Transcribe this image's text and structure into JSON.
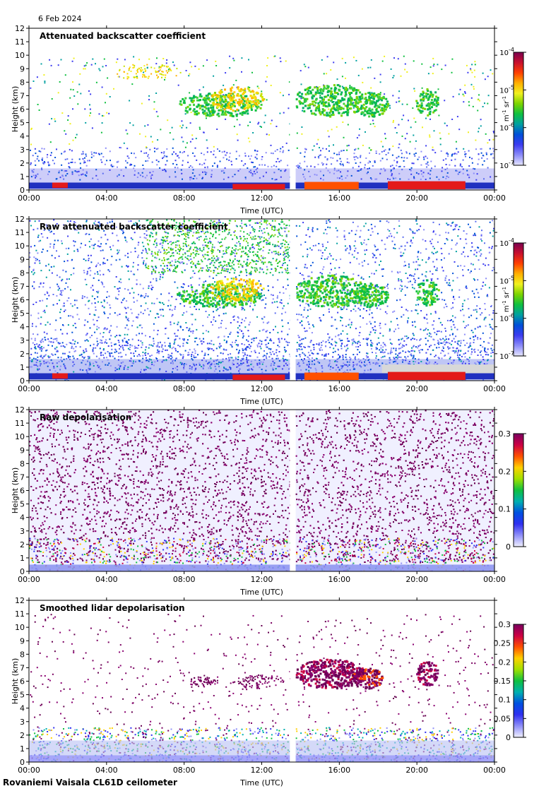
{
  "date": "6 Feb 2024",
  "footer": "Rovaniemi Vaisala CL61D ceilometer",
  "colors": {
    "gap": "#ffffff",
    "cloud_mid": "#37d04a",
    "cloud_high": "#f0d020",
    "low_red": "#e31a1a",
    "noise_blue": "#5a6cf0"
  },
  "chart_data": [
    {
      "type": "heatmap",
      "title": "Attenuated backscatter coefficient",
      "xlabel": "Time (UTC)",
      "ylabel": "Height (km)",
      "x_ticks": [
        "00:00",
        "04:00",
        "08:00",
        "12:00",
        "16:00",
        "20:00",
        "00:00"
      ],
      "y_ticks": [
        "0",
        "1",
        "2",
        "3",
        "4",
        "5",
        "6",
        "7",
        "8",
        "9",
        "10",
        "11",
        "12"
      ],
      "ylim": [
        0,
        12
      ],
      "colorbar": {
        "scale": "log",
        "ticks": [
          {
            "base": "10",
            "exp": "-4"
          },
          {
            "base": "10",
            "exp": "-5"
          },
          {
            "base": "10",
            "exp": "-6"
          },
          {
            "base": "10",
            "exp": "-7"
          }
        ],
        "unit_m": "m",
        "unit_m_exp": "-1",
        "unit_sr": "sr",
        "unit_sr_exp": "-1"
      }
    },
    {
      "type": "heatmap",
      "title": "Raw attenuated backscatter coefficient",
      "xlabel": "Time (UTC)",
      "ylabel": "Height (km)",
      "x_ticks": [
        "00:00",
        "04:00",
        "08:00",
        "12:00",
        "16:00",
        "20:00",
        "00:00"
      ],
      "y_ticks": [
        "0",
        "1",
        "2",
        "3",
        "4",
        "5",
        "6",
        "7",
        "8",
        "9",
        "10",
        "11",
        "12"
      ],
      "ylim": [
        0,
        12
      ],
      "colorbar": {
        "scale": "log",
        "ticks": [
          {
            "base": "10",
            "exp": "-4"
          },
          {
            "base": "10",
            "exp": "-5"
          },
          {
            "base": "10",
            "exp": "-6"
          },
          {
            "base": "10",
            "exp": "-7"
          }
        ],
        "unit_m": "m",
        "unit_m_exp": "-1",
        "unit_sr": "sr",
        "unit_sr_exp": "-1"
      }
    },
    {
      "type": "heatmap",
      "title": "Raw depolarisation",
      "xlabel": "Time (UTC)",
      "ylabel": "Height (km)",
      "x_ticks": [
        "00:00",
        "04:00",
        "08:00",
        "12:00",
        "16:00",
        "20:00",
        "00:00"
      ],
      "y_ticks": [
        "0",
        "1",
        "2",
        "3",
        "4",
        "5",
        "6",
        "7",
        "8",
        "9",
        "10",
        "11",
        "12"
      ],
      "ylim": [
        0,
        12
      ],
      "colorbar": {
        "scale": "linear",
        "ticks": [
          {
            "label": "0.3"
          },
          {
            "label": "0.2"
          },
          {
            "label": "0.1"
          },
          {
            "label": "0"
          }
        ]
      }
    },
    {
      "type": "heatmap",
      "title": "Smoothed lidar depolarisation",
      "xlabel": "Time (UTC)",
      "ylabel": "Height (km)",
      "x_ticks": [
        "00:00",
        "04:00",
        "08:00",
        "12:00",
        "16:00",
        "20:00",
        "00:00"
      ],
      "y_ticks": [
        "0",
        "1",
        "2",
        "3",
        "4",
        "5",
        "6",
        "7",
        "8",
        "9",
        "10",
        "11",
        "12"
      ],
      "ylim": [
        0,
        12
      ],
      "colorbar": {
        "scale": "linear",
        "ticks": [
          {
            "label": "0.3"
          },
          {
            "label": "0.25"
          },
          {
            "label": "0.2"
          },
          {
            "label": "0.15"
          },
          {
            "label": "0.1"
          },
          {
            "label": "0.05"
          },
          {
            "label": "0"
          }
        ]
      }
    }
  ]
}
